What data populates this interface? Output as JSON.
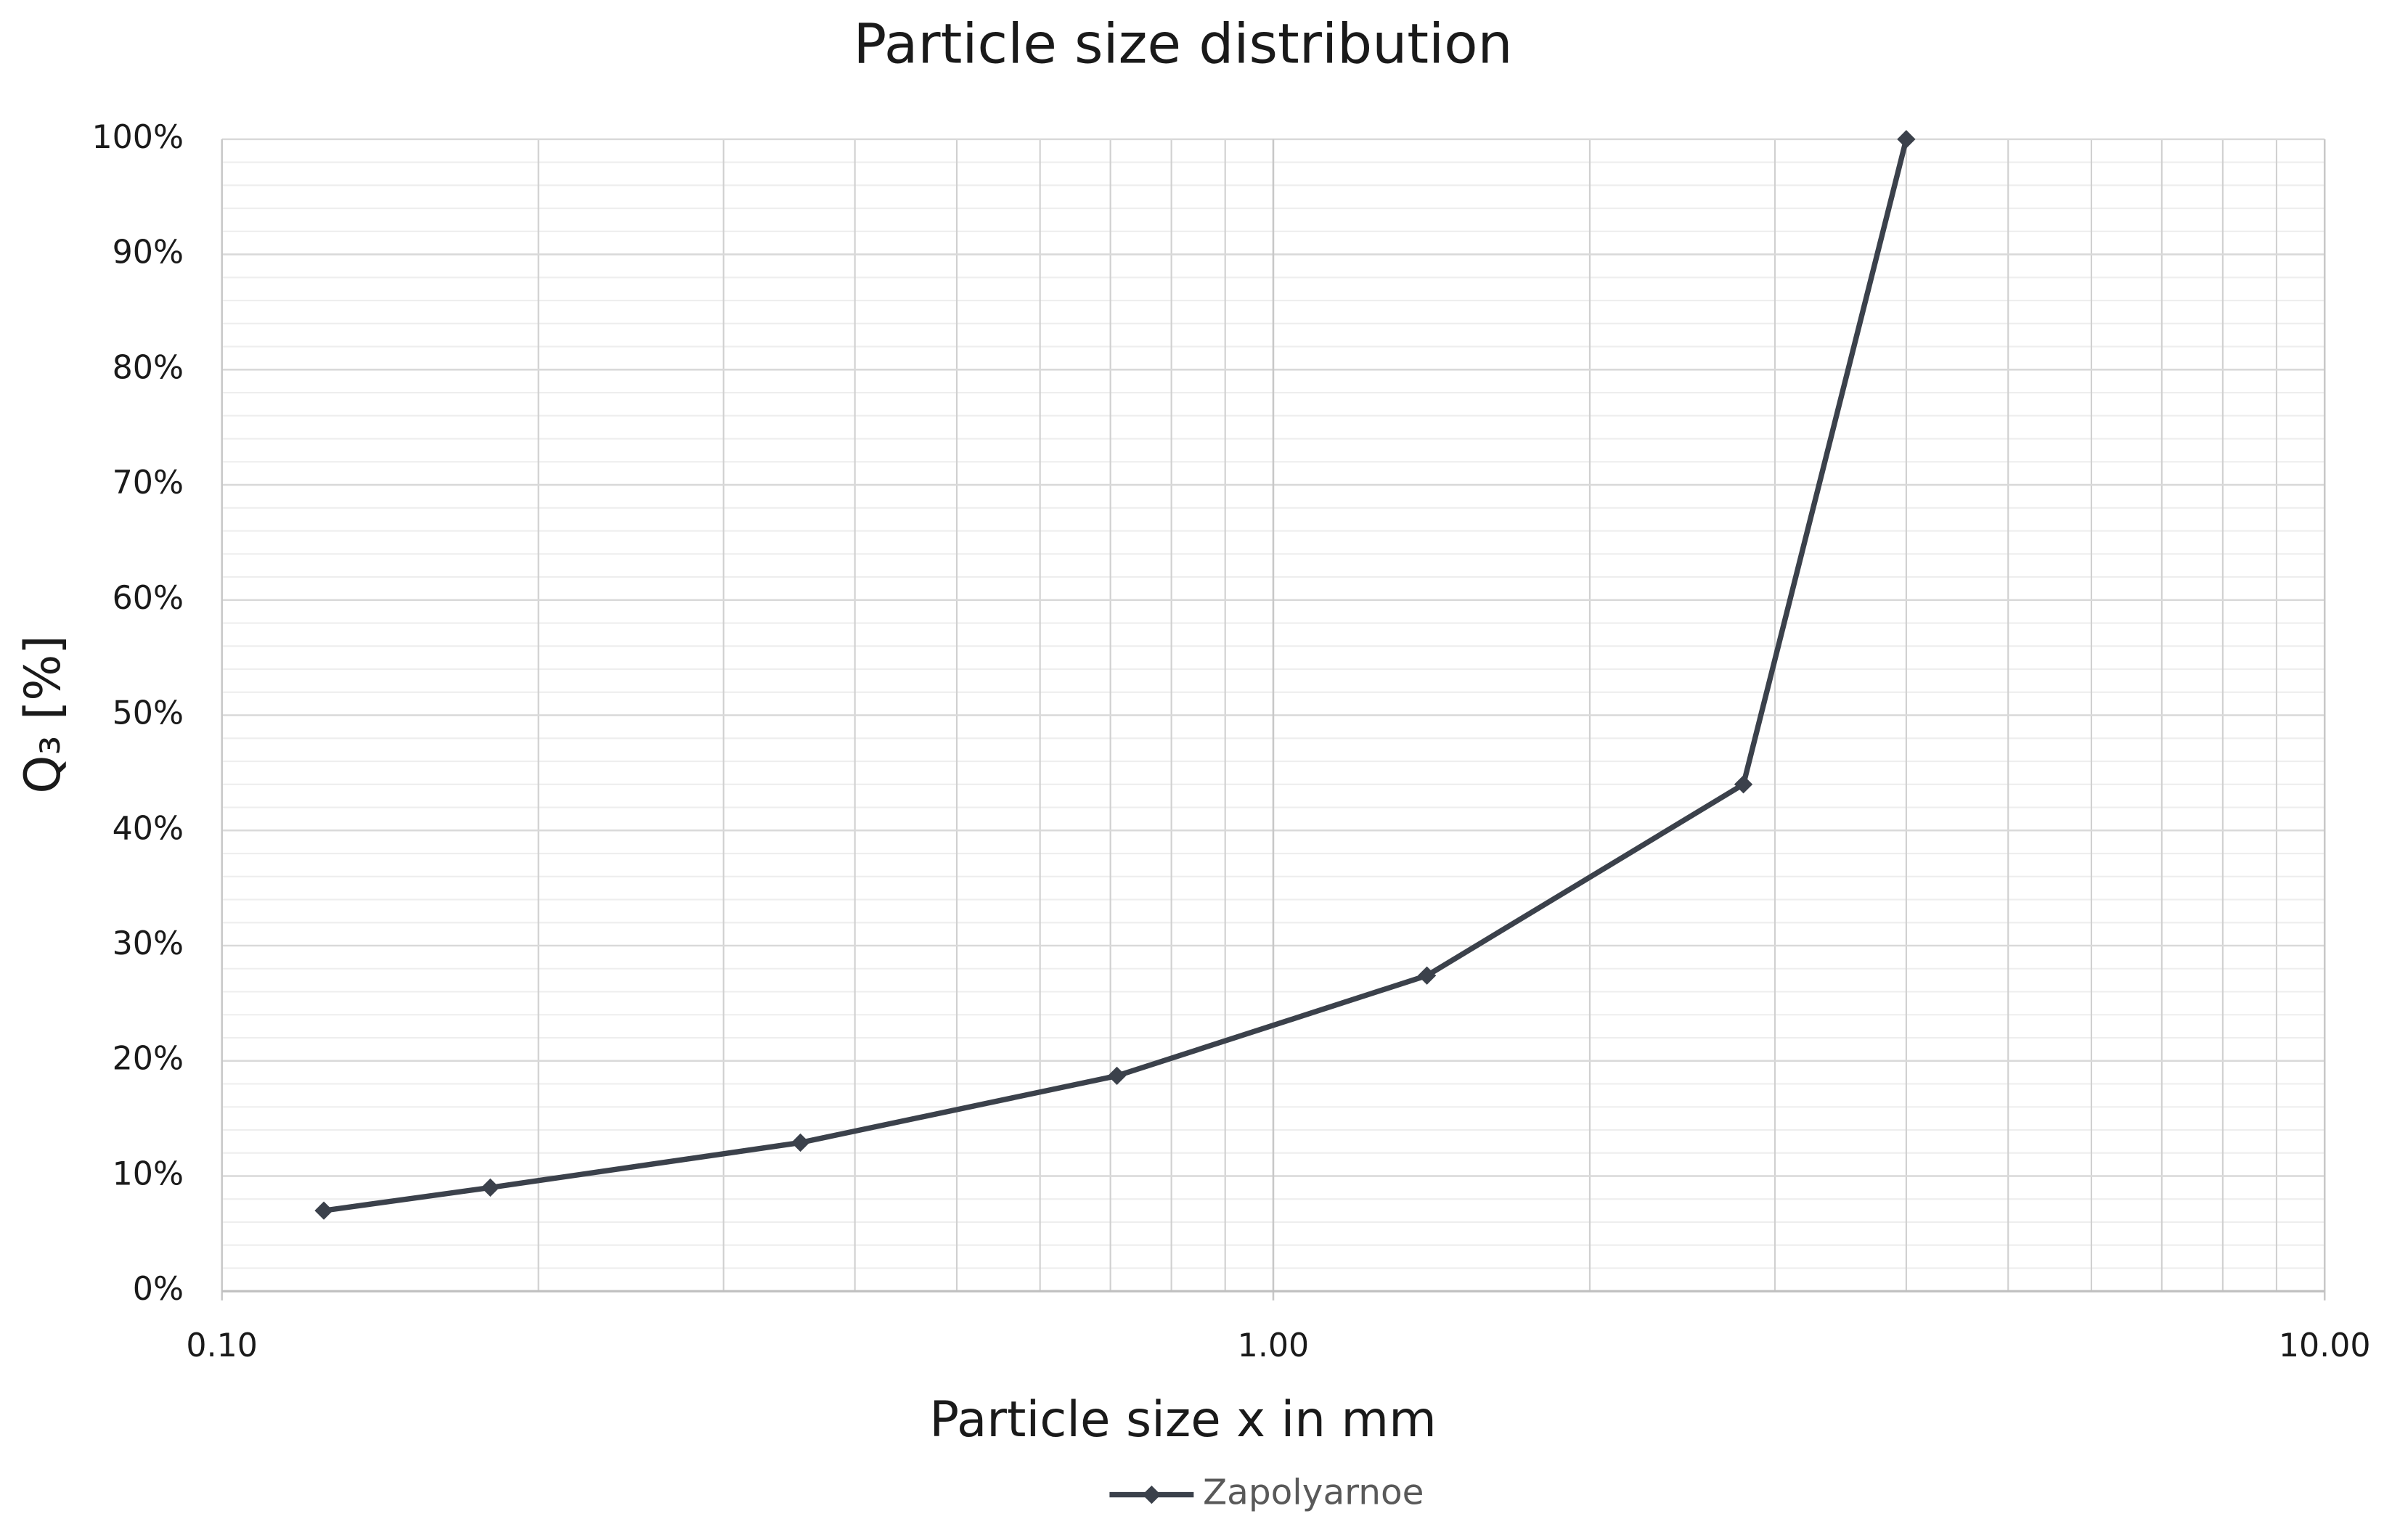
{
  "chart_data": {
    "type": "line",
    "title": "Particle size distribution",
    "x_label": "Particle size x in mm",
    "y_label": "Q₃ [%]",
    "x": [
      0.125,
      0.18,
      0.355,
      0.71,
      1.4,
      2.8,
      4.0
    ],
    "series": [
      {
        "name": "Zapolyarnoe",
        "color": "#3b414b",
        "values": [
          7,
          9,
          12.9,
          18.7,
          27.4,
          44,
          100
        ]
      }
    ],
    "x_log": true,
    "xlim": [
      0.1,
      10
    ],
    "xticks": [
      {
        "value": 0.1,
        "label": "0.10"
      },
      {
        "value": 1,
        "label": "1.00"
      },
      {
        "value": 10,
        "label": "10.00"
      }
    ],
    "xminorticks": [
      0.2,
      0.3,
      0.4,
      0.5,
      0.6,
      0.7,
      0.8,
      0.9,
      2,
      3,
      4,
      5,
      6,
      7,
      8,
      9
    ],
    "ylim": [
      0,
      100
    ],
    "yticks": [
      {
        "value": 0,
        "label": "0%"
      },
      {
        "value": 10,
        "label": "10%"
      },
      {
        "value": 20,
        "label": "20%"
      },
      {
        "value": 30,
        "label": "30%"
      },
      {
        "value": 40,
        "label": "40%"
      },
      {
        "value": 50,
        "label": "50%"
      },
      {
        "value": 60,
        "label": "60%"
      },
      {
        "value": 70,
        "label": "70%"
      },
      {
        "value": 80,
        "label": "80%"
      },
      {
        "value": 90,
        "label": "90%"
      },
      {
        "value": 100,
        "label": "100%"
      }
    ],
    "yminorticks": [
      2,
      4,
      6,
      8,
      12,
      14,
      16,
      18,
      22,
      24,
      26,
      28,
      32,
      34,
      36,
      38,
      42,
      44,
      46,
      48,
      52,
      54,
      56,
      58,
      62,
      64,
      66,
      68,
      72,
      74,
      76,
      78,
      82,
      84,
      86,
      88,
      92,
      94,
      96,
      98
    ],
    "grid": true,
    "legend": "bottom"
  }
}
